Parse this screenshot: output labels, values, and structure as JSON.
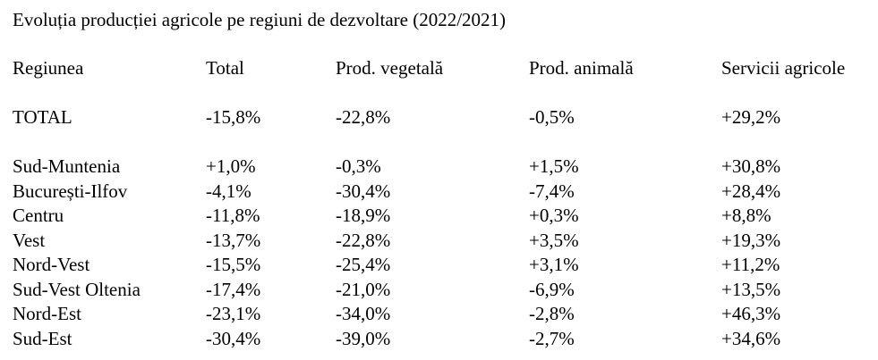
{
  "document": {
    "title": "Evoluția producției agricole pe regiuni de dezvoltare (2022/2021)"
  },
  "table": {
    "headers": [
      "Regiunea",
      "Total",
      "Prod. vegetală",
      "Prod. animală",
      "Servicii agricole"
    ],
    "total_row": [
      "TOTAL",
      "-15,8%",
      "-22,8%",
      "-0,5%",
      "+29,2%"
    ],
    "rows": [
      [
        "Sud-Muntenia",
        "+1,0%",
        "-0,3%",
        "+1,5%",
        "+30,8%"
      ],
      [
        "București-Ilfov",
        "-4,1%",
        "-30,4%",
        "-7,4%",
        "+28,4%"
      ],
      [
        "Centru",
        "-11,8%",
        "-18,9%",
        "+0,3%",
        "+8,8%"
      ],
      [
        "Vest",
        "-13,7%",
        "-22,8%",
        "+3,5%",
        "+19,3%"
      ],
      [
        "Nord-Vest",
        "-15,5%",
        "-25,4%",
        "+3,1%",
        "+11,2%"
      ],
      [
        "Sud-Vest Oltenia",
        "-17,4%",
        "-21,0%",
        "-6,9%",
        "+13,5%"
      ],
      [
        "Nord-Est",
        "-23,1%",
        "-34,0%",
        "-2,8%",
        "+46,3%"
      ],
      [
        "Sud-Est",
        "-30,4%",
        "-39,0%",
        "-2,7%",
        "+34,6%"
      ]
    ]
  }
}
